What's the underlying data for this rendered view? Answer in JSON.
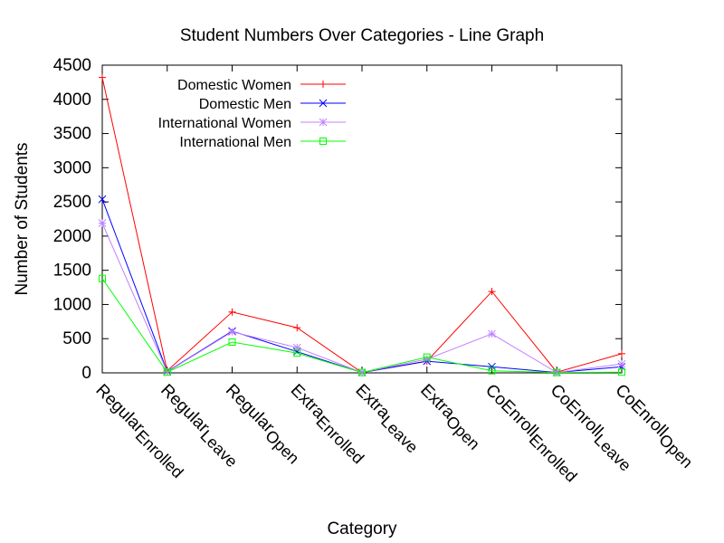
{
  "chart_data": {
    "type": "line",
    "title": "Student Numbers Over Categories - Line Graph",
    "xlabel": "Category",
    "ylabel": "Number of Students",
    "ylim": [
      0,
      4500
    ],
    "yticks": [
      0,
      500,
      1000,
      1500,
      2000,
      2500,
      3000,
      3500,
      4000,
      4500
    ],
    "grid": false,
    "legend_position": "top-left",
    "categories": [
      {
        "base": "Regular",
        "sub": "Enrolled"
      },
      {
        "base": "Regular",
        "sub": "Leave"
      },
      {
        "base": "Regular",
        "sub": "Open"
      },
      {
        "base": "Extra",
        "sub": "Enrolled"
      },
      {
        "base": "Extra",
        "sub": "Leave"
      },
      {
        "base": "Extra",
        "sub": "Open"
      },
      {
        "base": "CoEnroll",
        "sub": "Enrolled"
      },
      {
        "base": "CoEnroll",
        "sub": "Leave"
      },
      {
        "base": "CoEnroll",
        "sub": "Open"
      }
    ],
    "series": [
      {
        "name": "Domestic Women",
        "color": "#ff0000",
        "marker": "plus",
        "values": [
          4320,
          30,
          890,
          660,
          5,
          170,
          1190,
          10,
          280
        ]
      },
      {
        "name": "Domestic Men",
        "color": "#0000ff",
        "marker": "cross",
        "values": [
          2540,
          20,
          610,
          310,
          5,
          170,
          90,
          5,
          90
        ]
      },
      {
        "name": "International Women",
        "color": "#c080ff",
        "marker": "star",
        "values": [
          2190,
          15,
          600,
          370,
          5,
          200,
          570,
          5,
          130
        ]
      },
      {
        "name": "International Men",
        "color": "#00ff00",
        "marker": "square",
        "values": [
          1380,
          10,
          450,
          290,
          5,
          230,
          30,
          5,
          10
        ]
      }
    ]
  }
}
